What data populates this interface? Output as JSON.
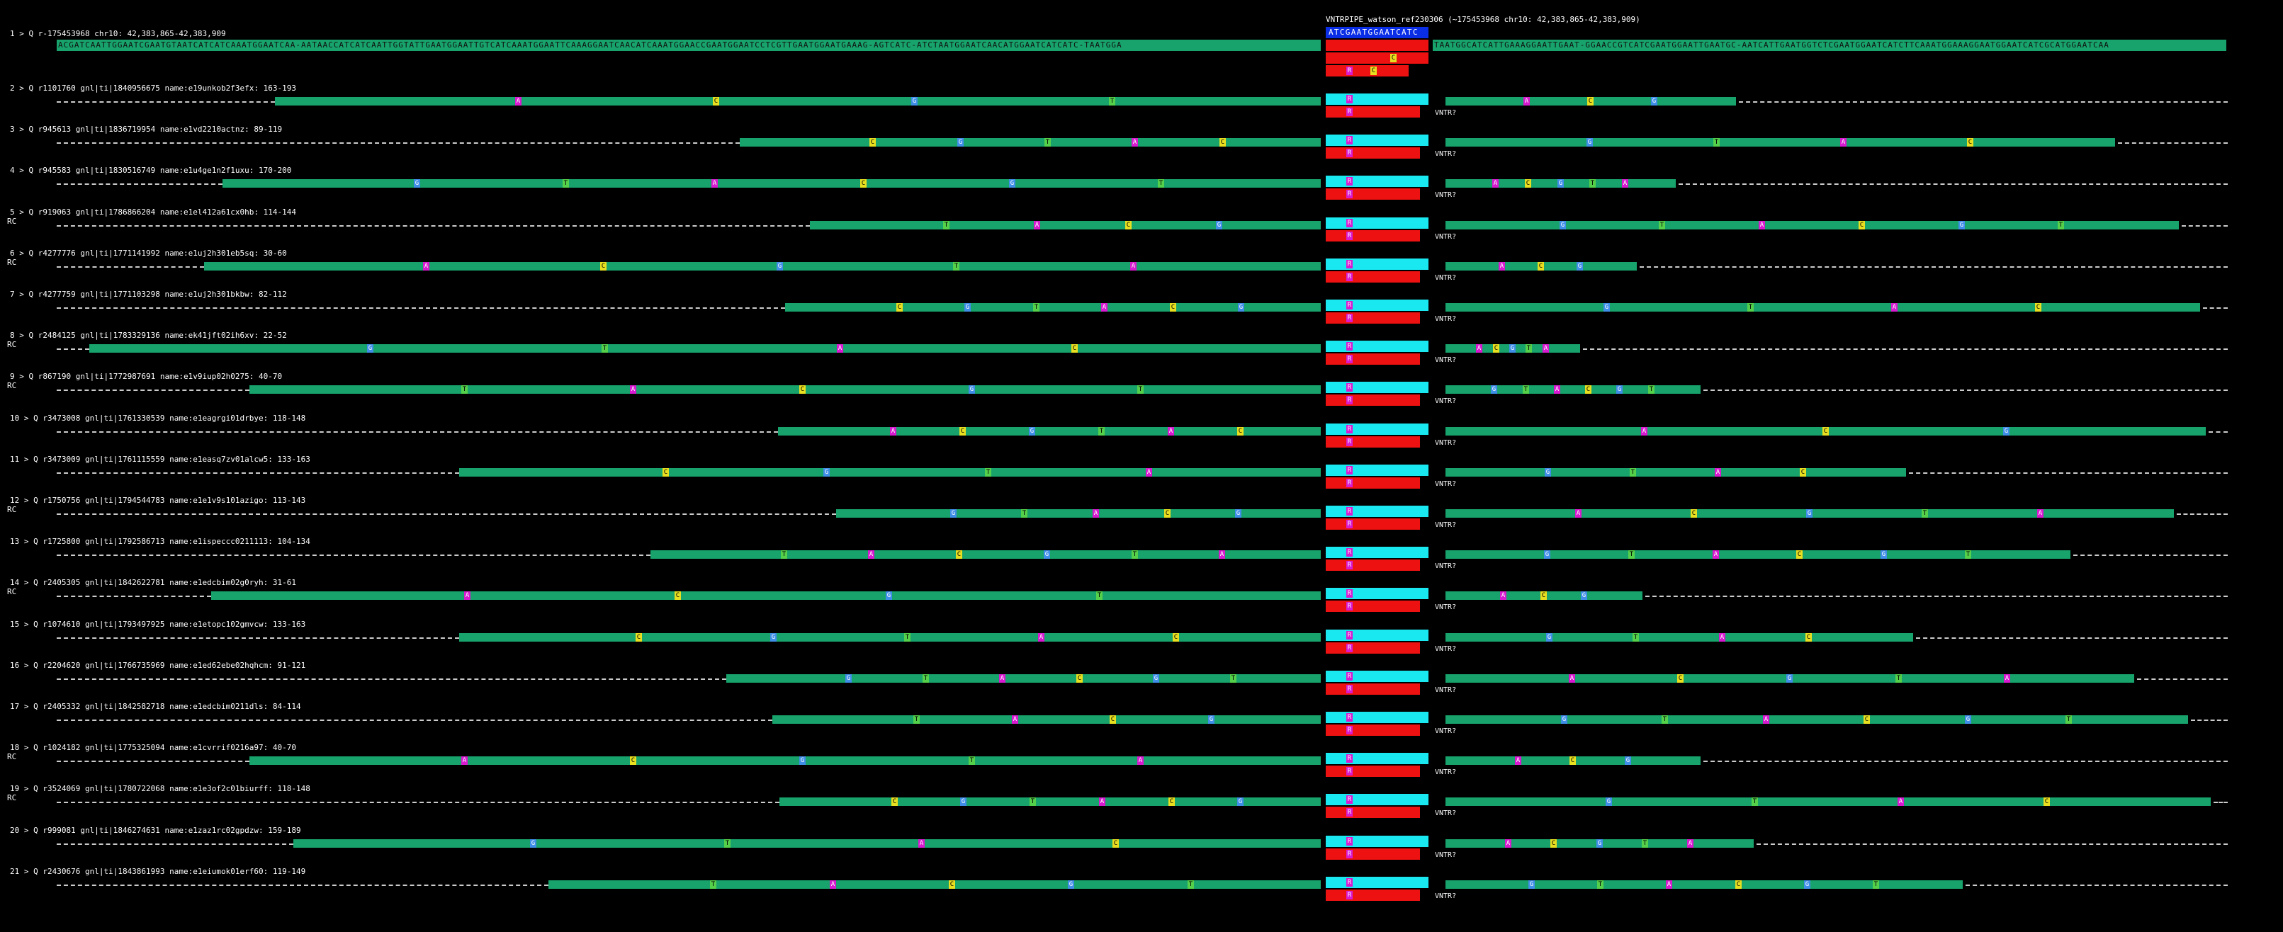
{
  "header": {
    "title": "VNTRPIPE_watson_ref230306 (~175453968 chr10: 42,383,865-42,383,909)",
    "vntr_ref_seq": "ATCGAATGGAATCATC"
  },
  "reference": {
    "label": "1 > Q r-175453968 chr10: 42,383,865-42,383,909",
    "left_seq": "ACGATCAATTGGAATCGAATGTAATCATCATCAAATGGAATCAA-AATAACCATCATCAATTGGTATTGAATGGAATTGTCATCAAATGGAATTCAAAGGAATCAACATCAAATGGAACCGAATGGAATCCTCGTTGAATGGAATGAAAG-AGTCATC-ATCTAATGGAATCAACATGGAATCATCATC-TAATGGA",
    "right_seq": "TAATGGCATCATTGAAAGGAATTGAAT-GGAACCGTCATCGAATGGAATTGAATGC-AATCATTGAATGGTCTCGAATGGAATCATCTTCAAATGGAAAGGAATGGAATCATCGCATGGAATCAA",
    "vntr_marks": [
      "R",
      "C"
    ]
  },
  "reads": [
    {
      "label": "2 > Q r1101760 gnl|ti|1840956675 name:e19unkob2f3efx: 163-193",
      "rc": ""
    },
    {
      "label": "3 > Q r945613 gnl|ti|1836719954 name:e1vd2210actnz: 89-119",
      "rc": ""
    },
    {
      "label": "4 > Q r945583 gnl|ti|1830516749 name:e1u4ge1n2f1uxu: 170-200",
      "rc": ""
    },
    {
      "label": "5 > Q r919063 gnl|ti|1786866204 name:e1el412a61cx0hb: 114-144",
      "rc": "RC"
    },
    {
      "label": "6 > Q r4277776 gnl|ti|1771141992 name:e1uj2h301eb5sq: 30-60",
      "rc": "RC"
    },
    {
      "label": "7 > Q r4277759 gnl|ti|1771103298 name:e1uj2h301bkbw: 82-112",
      "rc": ""
    },
    {
      "label": "8 > Q r2484125 gnl|ti|1783329136 name:ek41jft02ih6xv: 22-52",
      "rc": "RC"
    },
    {
      "label": "9 > Q r867190 gnl|ti|1772987691 name:e1v9iup02h0275: 40-70",
      "rc": "RC"
    },
    {
      "label": "10 > Q r3473008 gnl|ti|1761330539 name:e1eagrgi01drbye: 118-148",
      "rc": ""
    },
    {
      "label": "11 > Q r3473009 gnl|ti|1761115559 name:e1easq7zv01alcw5: 133-163",
      "rc": ""
    },
    {
      "label": "12 > Q r1750756 gnl|ti|1794544783 name:e1e1v9s101azigo: 113-143",
      "rc": "RC"
    },
    {
      "label": "13 > Q r1725800 gnl|ti|1792586713 name:e1ispeccc0211113: 104-134",
      "rc": ""
    },
    {
      "label": "14 > Q r2405305 gnl|ti|1842622781 name:e1edcbim02g0ryh: 31-61",
      "rc": "RC"
    },
    {
      "label": "15 > Q r1074610 gnl|ti|1793497925 name:e1etopc102gmvcw: 133-163",
      "rc": ""
    },
    {
      "label": "16 > Q r2204620 gnl|ti|1766735969 name:e1ed62ebe02hqhcm: 91-121",
      "rc": ""
    },
    {
      "label": "17 > Q r2405332 gnl|ti|1842582718 name:e1edcbim0211dls: 84-114",
      "rc": ""
    },
    {
      "label": "18 > Q r1024182 gnl|ti|1775325094 name:e1cvrrif0216a97: 40-70",
      "rc": "RC"
    },
    {
      "label": "19 > Q r3524069 gnl|ti|1780722068 name:e1e3of2c01biurff: 118-148",
      "rc": "RC"
    },
    {
      "label": "20 > Q r999081 gnl|ti|1846274631 name:e1zaz1rc02gpdzw: 159-189",
      "rc": ""
    },
    {
      "label": "21 > Q r2430676 gnl|ti|1843861993 name:e1eiumok01erf60: 119-149",
      "rc": ""
    }
  ],
  "vntr_unknown_label": "VNTR?",
  "colors": {
    "match": "#17a36b",
    "mismatch_a": "#d81bd0",
    "mismatch_c": "#e8df20",
    "mismatch_g": "#3f8ee8",
    "mismatch_t": "#55d04a",
    "vntr_repeat": "#19e8f0",
    "vntr_gap": "#ee1111",
    "vntr_ref": "#0a2ee6"
  }
}
